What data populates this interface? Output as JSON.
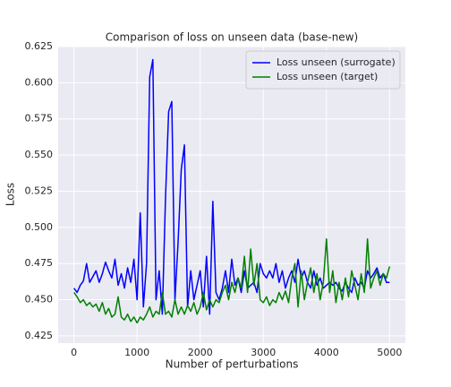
{
  "chart_data": {
    "type": "line",
    "title": "Comparison of loss on unseen data (base-new)",
    "xlabel": "Number of perturbations",
    "ylabel": "Loss",
    "x": [
      0,
      50,
      100,
      150,
      200,
      250,
      300,
      350,
      400,
      450,
      500,
      550,
      600,
      650,
      700,
      750,
      800,
      850,
      900,
      950,
      1000,
      1050,
      1100,
      1150,
      1200,
      1250,
      1300,
      1350,
      1400,
      1450,
      1500,
      1550,
      1600,
      1650,
      1700,
      1750,
      1800,
      1850,
      1900,
      1950,
      2000,
      2050,
      2100,
      2150,
      2200,
      2250,
      2300,
      2350,
      2400,
      2450,
      2500,
      2550,
      2600,
      2650,
      2700,
      2750,
      2800,
      2850,
      2900,
      2950,
      3000,
      3050,
      3100,
      3150,
      3200,
      3250,
      3300,
      3350,
      3400,
      3450,
      3500,
      3550,
      3600,
      3650,
      3700,
      3750,
      3800,
      3850,
      3900,
      3950,
      4000,
      4050,
      4100,
      4150,
      4200,
      4250,
      4300,
      4350,
      4400,
      4450,
      4500,
      4550,
      4600,
      4650,
      4700,
      4750,
      4800,
      4850,
      4900,
      4950,
      5000
    ],
    "series": [
      {
        "name": "Loss unseen (surrogate)",
        "color": "#0000ff",
        "values": [
          0.458,
          0.455,
          0.46,
          0.463,
          0.475,
          0.462,
          0.466,
          0.47,
          0.462,
          0.468,
          0.476,
          0.47,
          0.465,
          0.478,
          0.46,
          0.468,
          0.458,
          0.472,
          0.462,
          0.478,
          0.45,
          0.51,
          0.445,
          0.475,
          0.604,
          0.616,
          0.45,
          0.47,
          0.44,
          0.52,
          0.58,
          0.587,
          0.45,
          0.49,
          0.54,
          0.557,
          0.445,
          0.47,
          0.45,
          0.46,
          0.47,
          0.445,
          0.48,
          0.44,
          0.518,
          0.455,
          0.45,
          0.458,
          0.47,
          0.455,
          0.478,
          0.46,
          0.465,
          0.455,
          0.47,
          0.458,
          0.46,
          0.462,
          0.455,
          0.475,
          0.468,
          0.465,
          0.47,
          0.465,
          0.475,
          0.462,
          0.47,
          0.458,
          0.465,
          0.47,
          0.462,
          0.478,
          0.465,
          0.47,
          0.462,
          0.458,
          0.47,
          0.46,
          0.465,
          0.458,
          0.46,
          0.462,
          0.46,
          0.462,
          0.458,
          0.456,
          0.462,
          0.458,
          0.455,
          0.465,
          0.46,
          0.462,
          0.458,
          0.47,
          0.465,
          0.468,
          0.472,
          0.465,
          0.468,
          0.462,
          0.462
        ]
      },
      {
        "name": "Loss unseen (target)",
        "color": "#008000",
        "values": [
          0.455,
          0.452,
          0.448,
          0.45,
          0.446,
          0.448,
          0.445,
          0.447,
          0.442,
          0.448,
          0.44,
          0.444,
          0.438,
          0.44,
          0.452,
          0.438,
          0.436,
          0.44,
          0.435,
          0.438,
          0.434,
          0.438,
          0.436,
          0.44,
          0.445,
          0.438,
          0.442,
          0.44,
          0.455,
          0.44,
          0.442,
          0.438,
          0.45,
          0.44,
          0.445,
          0.44,
          0.446,
          0.442,
          0.448,
          0.44,
          0.445,
          0.455,
          0.443,
          0.45,
          0.445,
          0.45,
          0.448,
          0.455,
          0.46,
          0.45,
          0.462,
          0.455,
          0.465,
          0.458,
          0.48,
          0.455,
          0.485,
          0.46,
          0.475,
          0.45,
          0.448,
          0.452,
          0.446,
          0.45,
          0.448,
          0.455,
          0.45,
          0.456,
          0.448,
          0.465,
          0.475,
          0.445,
          0.47,
          0.45,
          0.462,
          0.472,
          0.455,
          0.468,
          0.45,
          0.462,
          0.492,
          0.455,
          0.47,
          0.448,
          0.462,
          0.45,
          0.465,
          0.452,
          0.47,
          0.46,
          0.45,
          0.468,
          0.455,
          0.492,
          0.458,
          0.465,
          0.47,
          0.46,
          0.468,
          0.465,
          0.473
        ]
      }
    ],
    "xlim": [
      -250,
      5250
    ],
    "ylim": [
      0.42,
      0.625
    ],
    "xticks": [
      0,
      1000,
      2000,
      3000,
      4000,
      5000
    ],
    "yticks": [
      0.425,
      {
        "value": 0.45,
        "label": "0.450"
      },
      0.475,
      {
        "value": 0.5,
        "label": "0.500"
      },
      0.525,
      {
        "value": 0.55,
        "label": "0.550"
      },
      0.575,
      {
        "value": 0.6,
        "label": "0.600"
      },
      0.625
    ],
    "grid": true,
    "legend": "upper right"
  }
}
